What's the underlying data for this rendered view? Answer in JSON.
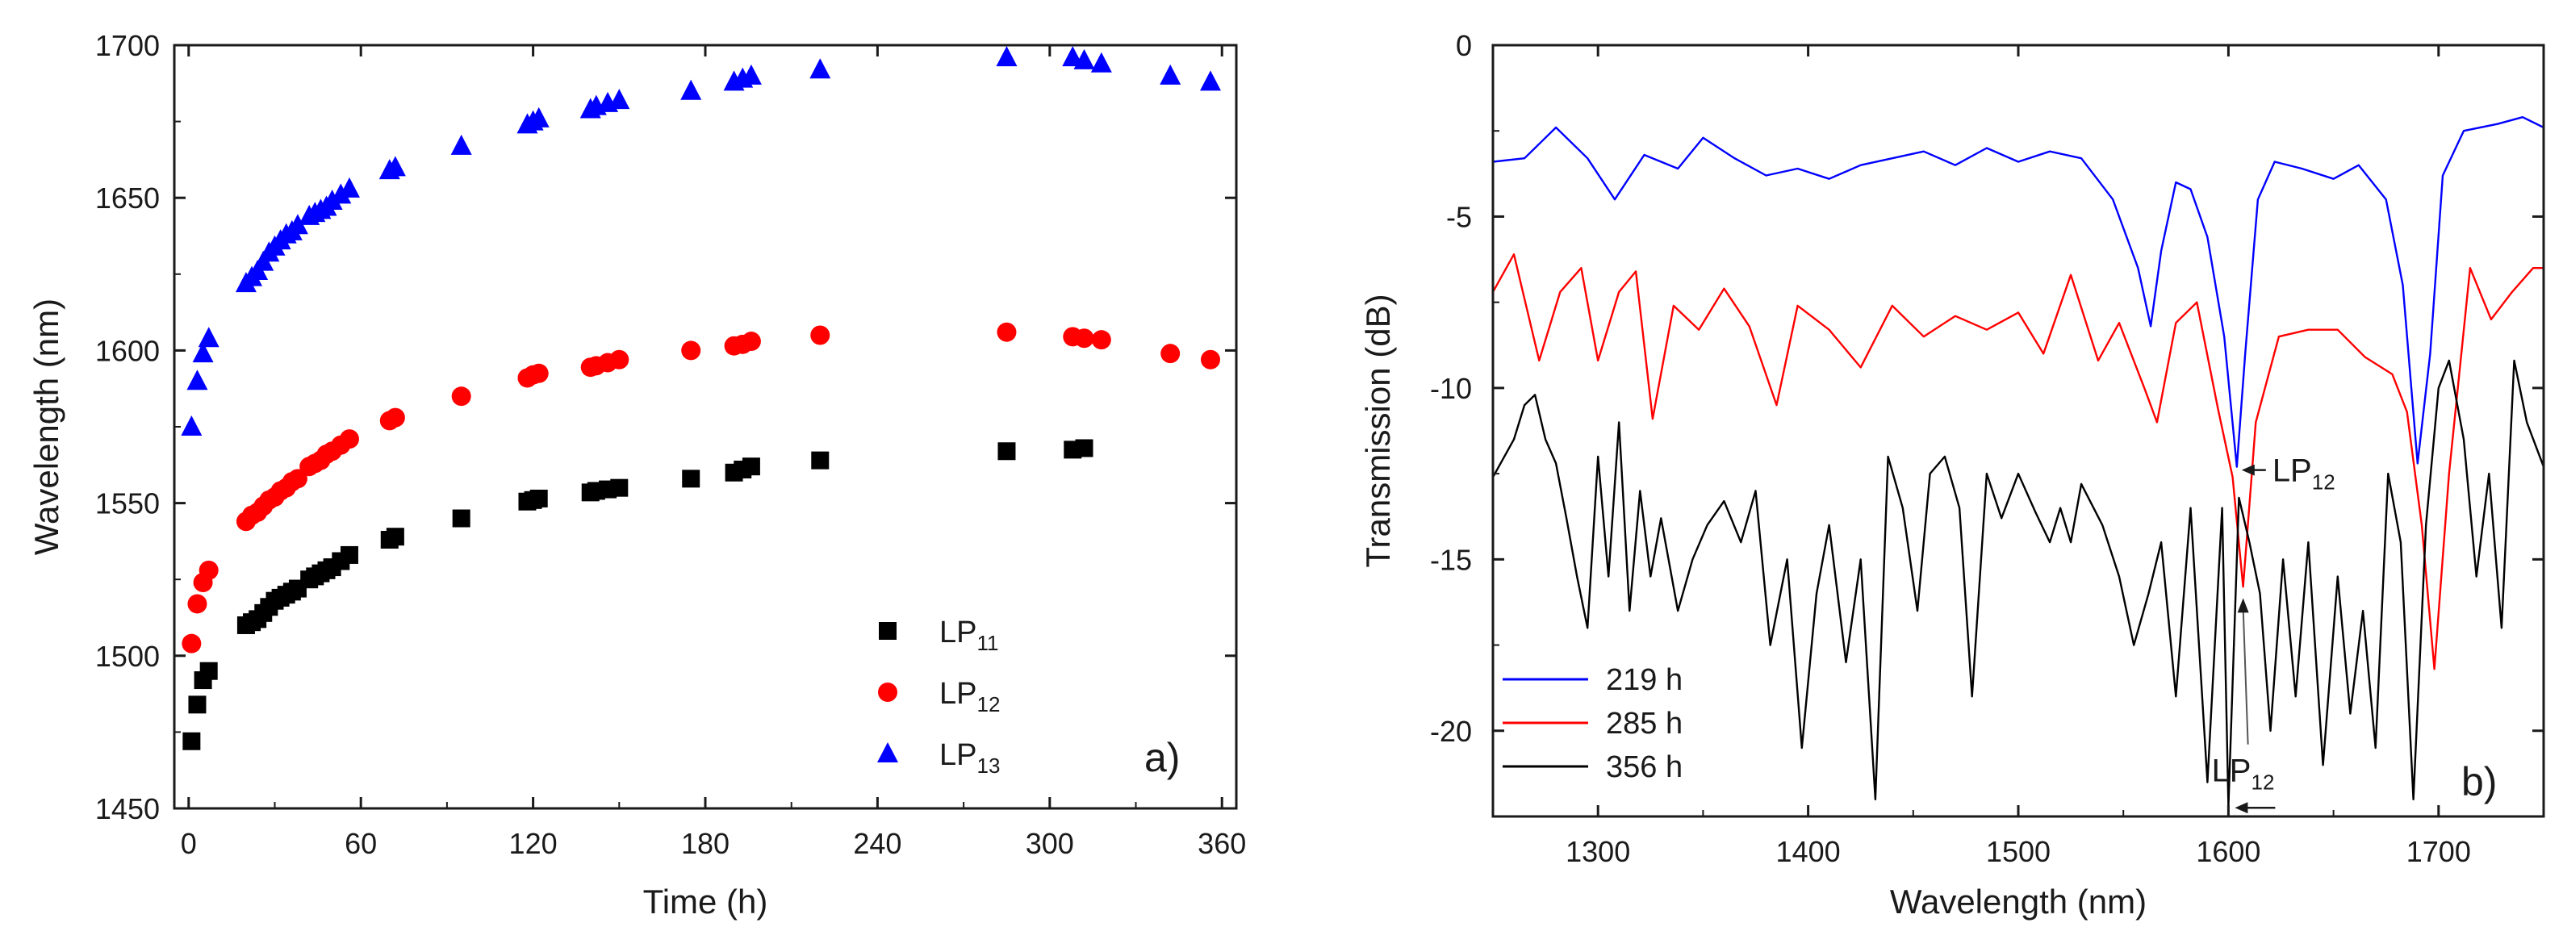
{
  "chart_data": [
    {
      "type": "scatter",
      "panel_label": "a)",
      "xlabel": "Time (h)",
      "ylabel": "Wavelength (nm)",
      "xlim": [
        -5,
        365
      ],
      "ylim": [
        1450,
        1700
      ],
      "xticks": [
        "0",
        "60",
        "120",
        "180",
        "240",
        "300",
        "360"
      ],
      "yticks": [
        "1450",
        "1500",
        "1550",
        "1600",
        "1650",
        "1700"
      ],
      "legend_position": "bottom-right",
      "series": [
        {
          "name": "LP11",
          "label_main": "LP",
          "label_sub": "11",
          "color": "#000000",
          "marker": "square",
          "x": [
            1,
            3,
            5,
            7,
            20,
            22,
            24,
            26,
            28,
            30,
            32,
            34,
            36,
            38,
            42,
            44,
            46,
            48,
            50,
            53,
            56,
            70,
            72,
            95,
            118,
            120,
            122,
            140,
            142,
            146,
            150,
            175,
            190,
            193,
            196,
            220,
            285,
            308,
            312
          ],
          "y": [
            1472,
            1484,
            1492,
            1495,
            1510,
            1511,
            1512,
            1514,
            1516,
            1518,
            1519,
            1520,
            1521,
            1522,
            1525,
            1526,
            1527,
            1528,
            1529,
            1531,
            1533,
            1538,
            1539,
            1545,
            1550.5,
            1551,
            1551.5,
            1553.5,
            1554,
            1554.5,
            1555,
            1558,
            1560,
            1561,
            1562,
            1564,
            1567,
            1567.5,
            1568
          ]
        },
        {
          "name": "LP12",
          "label_main": "LP",
          "label_sub": "12",
          "color": "#ff0000",
          "marker": "circle",
          "x": [
            1,
            3,
            5,
            7,
            20,
            22,
            24,
            26,
            28,
            30,
            32,
            34,
            36,
            38,
            42,
            44,
            46,
            48,
            50,
            53,
            56,
            70,
            72,
            95,
            118,
            120,
            122,
            140,
            142,
            146,
            150,
            175,
            190,
            193,
            196,
            220,
            285,
            308,
            312,
            318,
            342,
            356
          ],
          "y": [
            1504,
            1517,
            1524,
            1528,
            1544,
            1546,
            1547,
            1549,
            1551,
            1552,
            1554,
            1555,
            1557,
            1558,
            1562,
            1563,
            1564,
            1566,
            1567,
            1569,
            1571,
            1577,
            1578,
            1585,
            1591,
            1592,
            1592.5,
            1594.5,
            1595,
            1596,
            1597,
            1600,
            1601.5,
            1602,
            1603,
            1605,
            1606,
            1604.5,
            1604,
            1603.5,
            1599,
            1597
          ]
        },
        {
          "name": "LP13",
          "label_main": "LP",
          "label_sub": "13",
          "color": "#0000ff",
          "marker": "triangle",
          "x": [
            1,
            3,
            5,
            7,
            20,
            22,
            24,
            26,
            28,
            30,
            32,
            34,
            36,
            38,
            42,
            44,
            46,
            48,
            50,
            53,
            56,
            70,
            72,
            95,
            118,
            120,
            122,
            140,
            142,
            146,
            150,
            175,
            190,
            193,
            196,
            220,
            285,
            308,
            312,
            318,
            342,
            356
          ],
          "y": [
            1575,
            1590,
            1599,
            1604,
            1622,
            1624,
            1626,
            1629,
            1632,
            1634,
            1636,
            1638,
            1639,
            1641,
            1644,
            1645,
            1646,
            1647,
            1649,
            1651,
            1653,
            1659,
            1660,
            1667,
            1674,
            1675,
            1676,
            1679,
            1680,
            1681,
            1682,
            1685,
            1688,
            1689,
            1690,
            1692,
            1696,
            1696,
            1695,
            1694,
            1690,
            1688
          ]
        }
      ]
    },
    {
      "type": "line",
      "panel_label": "b)",
      "xlabel": "Wavelength (nm)",
      "ylabel": "Transmission (dB)",
      "xlim": [
        1250,
        1750
      ],
      "ylim": [
        -22.5,
        0
      ],
      "xticks": [
        "1300",
        "1400",
        "1500",
        "1600",
        "1700"
      ],
      "yticks": [
        "0",
        "-5",
        "-10",
        "-15",
        "-20"
      ],
      "legend_position": "bottom-left",
      "series": [
        {
          "name": "219 h",
          "color": "#0000ff",
          "points": [
            [
              1250,
              -3.4
            ],
            [
              1265,
              -3.3
            ],
            [
              1280,
              -2.4
            ],
            [
              1295,
              -3.3
            ],
            [
              1308,
              -4.5
            ],
            [
              1322,
              -3.2
            ],
            [
              1338,
              -3.6
            ],
            [
              1350,
              -2.7
            ],
            [
              1365,
              -3.3
            ],
            [
              1380,
              -3.8
            ],
            [
              1395,
              -3.6
            ],
            [
              1410,
              -3.9
            ],
            [
              1425,
              -3.5
            ],
            [
              1440,
              -3.3
            ],
            [
              1455,
              -3.1
            ],
            [
              1470,
              -3.5
            ],
            [
              1485,
              -3.0
            ],
            [
              1500,
              -3.4
            ],
            [
              1515,
              -3.1
            ],
            [
              1530,
              -3.3
            ],
            [
              1545,
              -4.5
            ],
            [
              1557,
              -6.5
            ],
            [
              1563,
              -8.2
            ],
            [
              1568,
              -6.0
            ],
            [
              1575,
              -4.0
            ],
            [
              1582,
              -4.2
            ],
            [
              1590,
              -5.6
            ],
            [
              1598,
              -8.5
            ],
            [
              1604,
              -12.3
            ],
            [
              1608,
              -9.0
            ],
            [
              1614,
              -4.5
            ],
            [
              1622,
              -3.4
            ],
            [
              1635,
              -3.6
            ],
            [
              1650,
              -3.9
            ],
            [
              1662,
              -3.5
            ],
            [
              1675,
              -4.5
            ],
            [
              1683,
              -7.0
            ],
            [
              1690,
              -12.2
            ],
            [
              1696,
              -9.0
            ],
            [
              1702,
              -3.8
            ],
            [
              1712,
              -2.5
            ],
            [
              1728,
              -2.3
            ],
            [
              1740,
              -2.1
            ],
            [
              1750,
              -2.4
            ]
          ]
        },
        {
          "name": "285 h",
          "color": "#ff0000",
          "points": [
            [
              1250,
              -7.2
            ],
            [
              1260,
              -6.1
            ],
            [
              1272,
              -9.2
            ],
            [
              1282,
              -7.2
            ],
            [
              1292,
              -6.5
            ],
            [
              1300,
              -9.2
            ],
            [
              1310,
              -7.2
            ],
            [
              1318,
              -6.6
            ],
            [
              1326,
              -10.9
            ],
            [
              1336,
              -7.6
            ],
            [
              1348,
              -8.3
            ],
            [
              1360,
              -7.1
            ],
            [
              1372,
              -8.2
            ],
            [
              1385,
              -10.5
            ],
            [
              1395,
              -7.6
            ],
            [
              1410,
              -8.3
            ],
            [
              1425,
              -9.4
            ],
            [
              1440,
              -7.6
            ],
            [
              1455,
              -8.5
            ],
            [
              1470,
              -7.9
            ],
            [
              1485,
              -8.3
            ],
            [
              1500,
              -7.8
            ],
            [
              1512,
              -9.0
            ],
            [
              1525,
              -6.7
            ],
            [
              1538,
              -9.2
            ],
            [
              1548,
              -8.1
            ],
            [
              1560,
              -10.0
            ],
            [
              1566,
              -11.0
            ],
            [
              1575,
              -8.1
            ],
            [
              1585,
              -7.5
            ],
            [
              1595,
              -10.6
            ],
            [
              1602,
              -12.6
            ],
            [
              1607,
              -15.8
            ],
            [
              1613,
              -11.0
            ],
            [
              1624,
              -8.5
            ],
            [
              1638,
              -8.3
            ],
            [
              1652,
              -8.3
            ],
            [
              1665,
              -9.1
            ],
            [
              1678,
              -9.6
            ],
            [
              1685,
              -10.7
            ],
            [
              1692,
              -14.0
            ],
            [
              1698,
              -18.2
            ],
            [
              1705,
              -12.5
            ],
            [
              1715,
              -6.5
            ],
            [
              1725,
              -8.0
            ],
            [
              1735,
              -7.2
            ],
            [
              1745,
              -6.5
            ],
            [
              1750,
              -6.5
            ]
          ]
        },
        {
          "name": "356 h",
          "color": "#000000",
          "points": [
            [
              1250,
              -12.6
            ],
            [
              1260,
              -11.5
            ],
            [
              1265,
              -10.5
            ],
            [
              1270,
              -10.2
            ],
            [
              1275,
              -11.5
            ],
            [
              1280,
              -12.2
            ],
            [
              1285,
              -13.8
            ],
            [
              1290,
              -15.5
            ],
            [
              1295,
              -17.0
            ],
            [
              1300,
              -12.0
            ],
            [
              1305,
              -15.5
            ],
            [
              1310,
              -11.0
            ],
            [
              1315,
              -16.5
            ],
            [
              1320,
              -13.0
            ],
            [
              1325,
              -15.5
            ],
            [
              1330,
              -13.8
            ],
            [
              1338,
              -16.5
            ],
            [
              1345,
              -15.0
            ],
            [
              1352,
              -14.0
            ],
            [
              1360,
              -13.3
            ],
            [
              1368,
              -14.5
            ],
            [
              1375,
              -13.0
            ],
            [
              1382,
              -17.5
            ],
            [
              1390,
              -15.0
            ],
            [
              1397,
              -20.5
            ],
            [
              1404,
              -16.0
            ],
            [
              1410,
              -14.0
            ],
            [
              1418,
              -18.0
            ],
            [
              1425,
              -15.0
            ],
            [
              1432,
              -22.0
            ],
            [
              1438,
              -12.0
            ],
            [
              1445,
              -13.5
            ],
            [
              1452,
              -16.5
            ],
            [
              1458,
              -12.5
            ],
            [
              1465,
              -12.0
            ],
            [
              1472,
              -13.5
            ],
            [
              1478,
              -19.0
            ],
            [
              1485,
              -12.5
            ],
            [
              1492,
              -13.8
            ],
            [
              1500,
              -12.5
            ],
            [
              1508,
              -13.6
            ],
            [
              1515,
              -14.5
            ],
            [
              1520,
              -13.5
            ],
            [
              1525,
              -14.5
            ],
            [
              1530,
              -12.8
            ],
            [
              1540,
              -14.0
            ],
            [
              1548,
              -15.5
            ],
            [
              1555,
              -17.5
            ],
            [
              1562,
              -16.0
            ],
            [
              1568,
              -14.5
            ],
            [
              1575,
              -19.0
            ],
            [
              1582,
              -13.5
            ],
            [
              1590,
              -21.5
            ],
            [
              1597,
              -13.5
            ],
            [
              1600,
              -22.2
            ],
            [
              1605,
              -13.2
            ],
            [
              1610,
              -14.5
            ],
            [
              1615,
              -16.0
            ],
            [
              1620,
              -20.0
            ],
            [
              1626,
              -15.0
            ],
            [
              1632,
              -19.0
            ],
            [
              1638,
              -14.5
            ],
            [
              1645,
              -21.0
            ],
            [
              1652,
              -15.5
            ],
            [
              1658,
              -19.5
            ],
            [
              1664,
              -16.5
            ],
            [
              1670,
              -20.5
            ],
            [
              1676,
              -12.5
            ],
            [
              1682,
              -14.5
            ],
            [
              1688,
              -22.0
            ],
            [
              1694,
              -14.0
            ],
            [
              1700,
              -10.0
            ],
            [
              1705,
              -9.2
            ],
            [
              1712,
              -11.5
            ],
            [
              1718,
              -15.5
            ],
            [
              1724,
              -12.5
            ],
            [
              1730,
              -17.0
            ],
            [
              1736,
              -9.2
            ],
            [
              1742,
              -11.0
            ],
            [
              1750,
              -12.3
            ]
          ]
        }
      ],
      "annotations": [
        {
          "text_main": "LP",
          "text_sub": "12",
          "points_to": [
            1604,
            -12.3
          ],
          "text_at": [
            1620,
            -12.5
          ]
        },
        {
          "text_main": "LP",
          "text_sub": "12",
          "points_to": [
            1600,
            -22.2
          ],
          "text_at": [
            1592,
            -21.0
          ]
        }
      ]
    }
  ]
}
